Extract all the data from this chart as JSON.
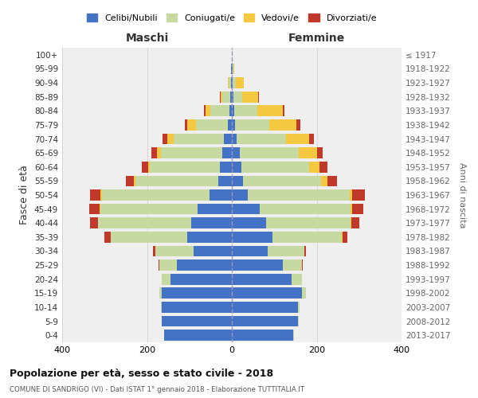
{
  "age_groups": [
    "0-4",
    "5-9",
    "10-14",
    "15-19",
    "20-24",
    "25-29",
    "30-34",
    "35-39",
    "40-44",
    "45-49",
    "50-54",
    "55-59",
    "60-64",
    "65-69",
    "70-74",
    "75-79",
    "80-84",
    "85-89",
    "90-94",
    "95-99",
    "100+"
  ],
  "birth_years": [
    "2013-2017",
    "2008-2012",
    "2003-2007",
    "1998-2002",
    "1993-1997",
    "1988-1992",
    "1983-1987",
    "1978-1982",
    "1973-1977",
    "1968-1972",
    "1963-1967",
    "1958-1962",
    "1953-1957",
    "1948-1952",
    "1943-1947",
    "1938-1942",
    "1933-1937",
    "1928-1932",
    "1923-1927",
    "1918-1922",
    "≤ 1917"
  ],
  "male": {
    "celibi": [
      160,
      165,
      165,
      165,
      145,
      130,
      90,
      105,
      95,
      80,
      52,
      32,
      28,
      22,
      18,
      10,
      5,
      4,
      2,
      1,
      0
    ],
    "coniugati": [
      0,
      1,
      2,
      5,
      20,
      40,
      90,
      180,
      220,
      230,
      255,
      195,
      165,
      145,
      120,
      75,
      45,
      18,
      5,
      1,
      0
    ],
    "vedovi": [
      0,
      0,
      0,
      0,
      0,
      0,
      0,
      1,
      1,
      2,
      3,
      4,
      5,
      10,
      15,
      20,
      12,
      5,
      2,
      0,
      0
    ],
    "divorziati": [
      0,
      0,
      0,
      0,
      1,
      2,
      5,
      15,
      18,
      25,
      25,
      18,
      15,
      12,
      10,
      5,
      3,
      1,
      0,
      0,
      0
    ]
  },
  "female": {
    "nubili": [
      145,
      155,
      155,
      165,
      140,
      120,
      85,
      95,
      80,
      65,
      38,
      26,
      22,
      18,
      12,
      8,
      5,
      4,
      2,
      1,
      0
    ],
    "coniugate": [
      1,
      2,
      5,
      10,
      25,
      45,
      85,
      165,
      200,
      215,
      240,
      185,
      160,
      140,
      115,
      80,
      55,
      20,
      8,
      2,
      0
    ],
    "vedove": [
      0,
      0,
      0,
      0,
      0,
      0,
      0,
      1,
      2,
      4,
      6,
      15,
      25,
      42,
      55,
      65,
      60,
      38,
      18,
      3,
      0
    ],
    "divorziate": [
      0,
      0,
      0,
      0,
      1,
      2,
      5,
      12,
      18,
      25,
      30,
      22,
      18,
      15,
      12,
      8,
      4,
      2,
      1,
      0,
      0
    ]
  },
  "colors": {
    "celibi": "#4472c4",
    "coniugati": "#c5d9a0",
    "vedovi": "#f5c842",
    "divorziati": "#c0392b"
  },
  "legend_labels": [
    "Celibi/Nubili",
    "Coniugati/e",
    "Vedovi/e",
    "Divorziati/e"
  ],
  "title": "Popolazione per età, sesso e stato civile - 2018",
  "subtitle": "COMUNE DI SANDRIGO (VI) - Dati ISTAT 1° gennaio 2018 - Elaborazione TUTTITALIA.IT",
  "xlabel_left": "Maschi",
  "xlabel_right": "Femmine",
  "ylabel_left": "Fasce di età",
  "ylabel_right": "Anni di nascita",
  "xlim": 400,
  "background_color": "#ffffff",
  "plot_bg_color": "#efefef",
  "grid_color": "#cccccc"
}
